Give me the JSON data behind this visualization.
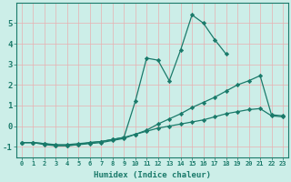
{
  "background_color": "#cceee8",
  "grid_color": "#e8b0b0",
  "line_color": "#1a7a6a",
  "x_label": "Humidex (Indice chaleur)",
  "ylim": [
    -1.5,
    6.0
  ],
  "xlim": [
    -0.5,
    23.5
  ],
  "yticks": [
    -1,
    0,
    1,
    2,
    3,
    4,
    5
  ],
  "xticks": [
    0,
    1,
    2,
    3,
    4,
    5,
    6,
    7,
    8,
    9,
    10,
    11,
    12,
    13,
    14,
    15,
    16,
    17,
    18,
    19,
    20,
    21,
    22,
    23
  ],
  "series1_x": [
    0,
    1,
    2,
    3,
    4,
    5,
    6,
    7,
    8,
    9,
    10,
    11,
    12,
    13,
    14,
    15,
    16,
    17,
    18,
    19,
    20,
    21,
    22,
    23
  ],
  "series1_y": [
    -0.8,
    -0.8,
    -0.9,
    -0.95,
    -0.95,
    -0.9,
    -0.85,
    -0.8,
    -0.7,
    -0.6,
    -0.4,
    -0.2,
    0.1,
    0.35,
    0.6,
    0.9,
    1.15,
    1.4,
    1.7,
    2.0,
    2.2,
    2.45,
    0.55,
    0.5
  ],
  "series2_x": [
    0,
    1,
    2,
    3,
    4,
    5,
    6,
    7,
    8,
    9,
    10,
    11,
    12,
    13,
    14,
    15,
    16,
    17,
    18,
    19,
    20,
    21,
    22,
    23
  ],
  "series2_y": [
    -0.8,
    -0.8,
    -0.85,
    -0.9,
    -0.9,
    -0.85,
    -0.8,
    -0.75,
    -0.65,
    -0.55,
    -0.4,
    -0.25,
    -0.1,
    0.0,
    0.1,
    0.2,
    0.3,
    0.45,
    0.6,
    0.7,
    0.8,
    0.85,
    0.5,
    0.45
  ],
  "series3_x": [
    0,
    1,
    2,
    3,
    4,
    5,
    6,
    7,
    8,
    9,
    10,
    11,
    12,
    13,
    14,
    15,
    16,
    17,
    18,
    19,
    20,
    21,
    22,
    23
  ],
  "series3_y": [
    -0.8,
    -0.8,
    -0.85,
    -0.95,
    -0.95,
    -0.9,
    -0.8,
    -0.75,
    -0.65,
    -0.55,
    1.2,
    3.3,
    3.2,
    2.2,
    3.7,
    5.4,
    5.0,
    4.2,
    3.5,
    null,
    null,
    null,
    null,
    null
  ]
}
